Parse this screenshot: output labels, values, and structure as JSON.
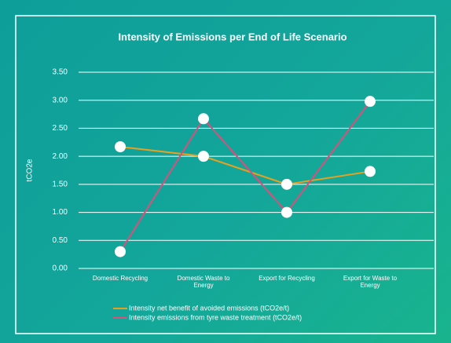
{
  "chart_data": {
    "type": "line",
    "title": "Intensity of Emissions per End of Life Scenario",
    "y_label": "tCO2e",
    "categories": [
      "Domestic Recycling",
      "Domestic Waste to Energy",
      "Export for Recycling",
      "Export for Waste to Energy"
    ],
    "series": [
      {
        "name": "Intensity net benefit of avoided emissions (tCO2e/t)",
        "color": "#e8a020",
        "values": [
          2.17,
          2.0,
          1.5,
          1.73
        ]
      },
      {
        "name": "Intensity emissions from tyre waste treatment (tCO2e/t)",
        "color": "#d9507a",
        "values": [
          0.3,
          2.67,
          1.0,
          2.98
        ]
      }
    ],
    "ylim": [
      0,
      3.5
    ],
    "yticks": [
      {
        "value": 0,
        "label": "0.00"
      },
      {
        "value": 0.5,
        "label": "0.50"
      },
      {
        "value": 1,
        "label": "1.00"
      },
      {
        "value": 1.5,
        "label": "1.50"
      },
      {
        "value": 2,
        "label": "2.00"
      },
      {
        "value": 2.5,
        "label": "2.50"
      },
      {
        "value": 3,
        "label": "3.00"
      },
      {
        "value": 3.5,
        "label": "3.50"
      }
    ],
    "grid": true
  }
}
